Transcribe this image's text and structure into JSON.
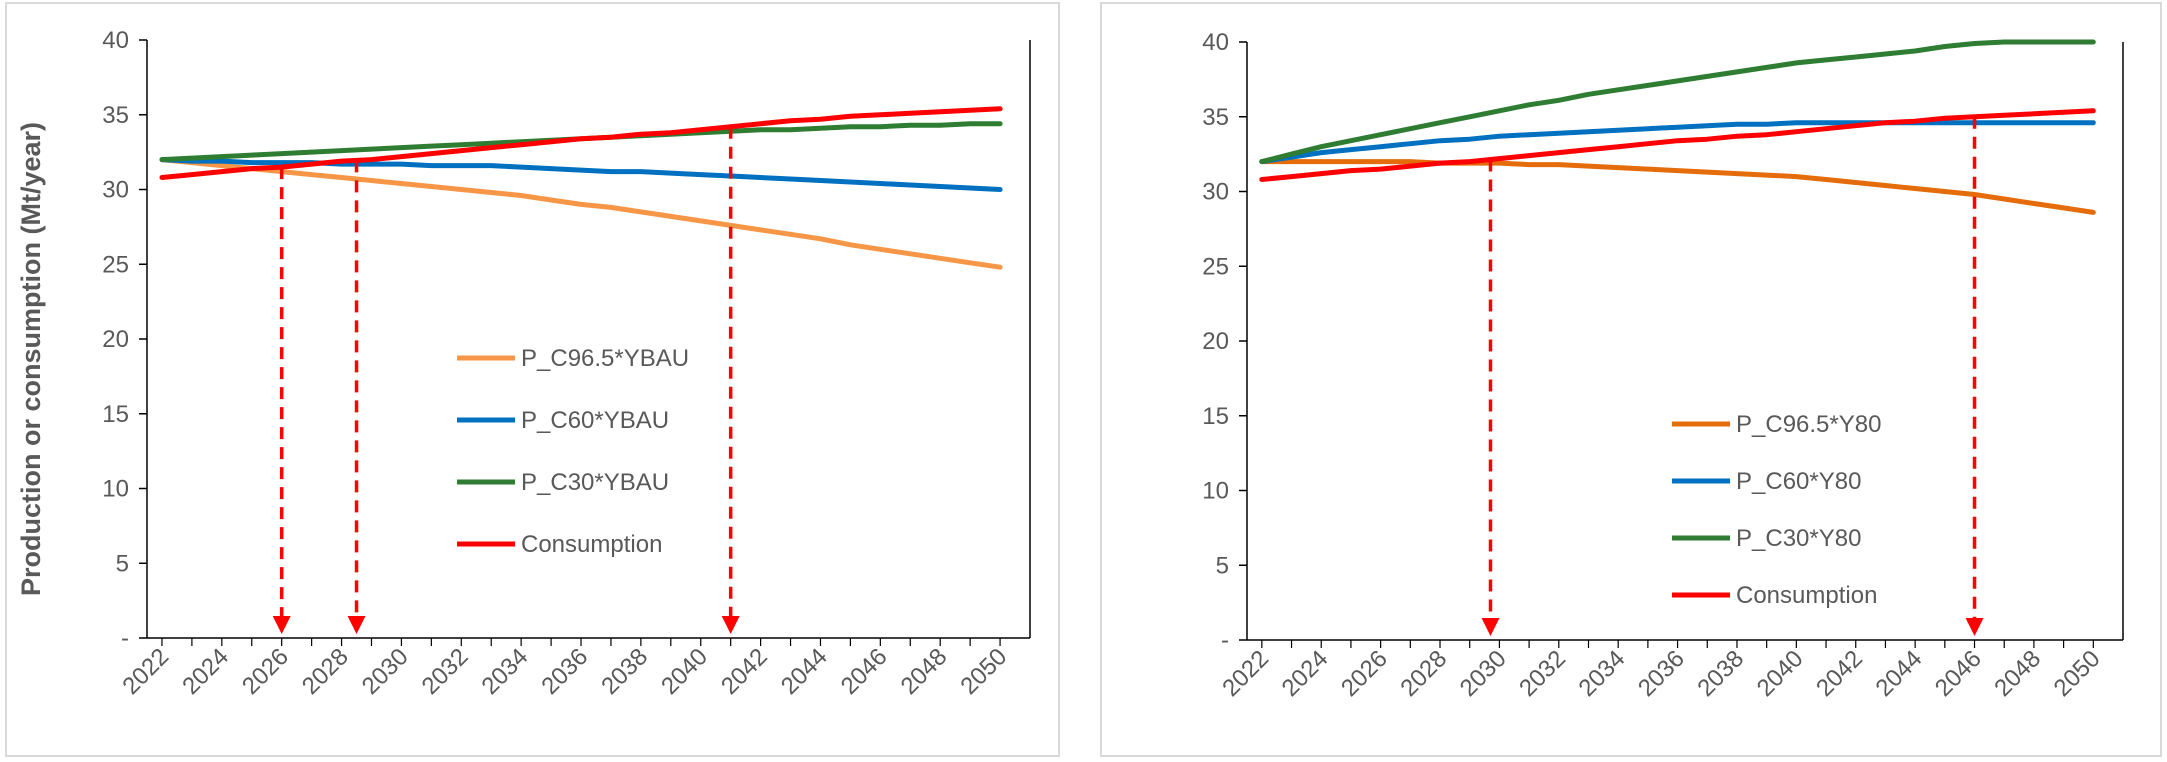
{
  "chart_data": [
    {
      "type": "line",
      "ylabel": "Production or consumption (Mt/year)",
      "xlabel": "",
      "xlim": [
        2021.5,
        2051
      ],
      "ylim": [
        0,
        40
      ],
      "x_ticks": [
        "2022",
        "2024",
        "2026",
        "2028",
        "2030",
        "2032",
        "2034",
        "2036",
        "2038",
        "2040",
        "2042",
        "2044",
        "2046",
        "2048",
        "2050"
      ],
      "y_ticks": [
        "-",
        "5",
        "10",
        "15",
        "20",
        "25",
        "30",
        "35",
        "40"
      ],
      "legend_position": "center",
      "x": [
        2022,
        2023,
        2024,
        2025,
        2026,
        2027,
        2028,
        2029,
        2030,
        2031,
        2032,
        2033,
        2034,
        2035,
        2036,
        2037,
        2038,
        2039,
        2040,
        2041,
        2042,
        2043,
        2044,
        2045,
        2046,
        2047,
        2048,
        2049,
        2050
      ],
      "series": [
        {
          "name": "P_C96.5*YBAU",
          "color": "#f79646",
          "values": [
            32.0,
            31.8,
            31.6,
            31.4,
            31.2,
            31.0,
            30.8,
            30.6,
            30.4,
            30.2,
            30.0,
            29.8,
            29.6,
            29.3,
            29.0,
            28.8,
            28.5,
            28.2,
            27.9,
            27.6,
            27.3,
            27.0,
            26.7,
            26.3,
            26.0,
            25.7,
            25.4,
            25.1,
            24.8
          ]
        },
        {
          "name": "P_C60*YBAU",
          "color": "#0070c0",
          "values": [
            32.0,
            31.9,
            31.9,
            31.8,
            31.8,
            31.8,
            31.7,
            31.7,
            31.7,
            31.6,
            31.6,
            31.6,
            31.5,
            31.4,
            31.3,
            31.2,
            31.2,
            31.1,
            31.0,
            30.9,
            30.8,
            30.7,
            30.6,
            30.5,
            30.4,
            30.3,
            30.2,
            30.1,
            30.0
          ]
        },
        {
          "name": "P_C30*YBAU",
          "color": "#2e7d32",
          "values": [
            32.0,
            32.1,
            32.2,
            32.3,
            32.4,
            32.5,
            32.6,
            32.7,
            32.8,
            32.9,
            33.0,
            33.1,
            33.2,
            33.3,
            33.4,
            33.5,
            33.6,
            33.7,
            33.8,
            33.9,
            34.0,
            34.0,
            34.1,
            34.2,
            34.2,
            34.3,
            34.3,
            34.4,
            34.4
          ]
        },
        {
          "name": "Consumption",
          "color": "#ff0000",
          "values": [
            30.8,
            31.0,
            31.2,
            31.4,
            31.5,
            31.7,
            31.9,
            32.0,
            32.2,
            32.4,
            32.6,
            32.8,
            33.0,
            33.2,
            33.4,
            33.5,
            33.7,
            33.8,
            34.0,
            34.2,
            34.4,
            34.6,
            34.7,
            34.9,
            35.0,
            35.1,
            35.2,
            35.3,
            35.4
          ]
        }
      ],
      "arrows_x": [
        2026,
        2028.5,
        2041
      ]
    },
    {
      "type": "line",
      "ylabel": "",
      "xlabel": "",
      "xlim": [
        2021.5,
        2051
      ],
      "ylim": [
        0,
        40
      ],
      "x_ticks": [
        "2022",
        "2024",
        "2026",
        "2028",
        "2030",
        "2032",
        "2034",
        "2036",
        "2038",
        "2040",
        "2042",
        "2044",
        "2046",
        "2048",
        "2050"
      ],
      "y_ticks": [
        "-",
        "5",
        "10",
        "15",
        "20",
        "25",
        "30",
        "35",
        "40"
      ],
      "legend_position": "lower-center",
      "x": [
        2022,
        2023,
        2024,
        2025,
        2026,
        2027,
        2028,
        2029,
        2030,
        2031,
        2032,
        2033,
        2034,
        2035,
        2036,
        2037,
        2038,
        2039,
        2040,
        2041,
        2042,
        2043,
        2044,
        2045,
        2046,
        2047,
        2048,
        2049,
        2050
      ],
      "series": [
        {
          "name": "P_C96.5*Y80",
          "color": "#e46c0a",
          "values": [
            32.0,
            32.0,
            32.0,
            32.0,
            32.0,
            32.0,
            31.9,
            31.9,
            31.9,
            31.8,
            31.8,
            31.7,
            31.6,
            31.5,
            31.4,
            31.3,
            31.2,
            31.1,
            31.0,
            30.8,
            30.6,
            30.4,
            30.2,
            30.0,
            29.8,
            29.5,
            29.2,
            28.9,
            28.6
          ]
        },
        {
          "name": "P_C60*Y80",
          "color": "#0070c0",
          "values": [
            32.0,
            32.3,
            32.6,
            32.8,
            33.0,
            33.2,
            33.4,
            33.5,
            33.7,
            33.8,
            33.9,
            34.0,
            34.1,
            34.2,
            34.3,
            34.4,
            34.5,
            34.5,
            34.6,
            34.6,
            34.6,
            34.6,
            34.6,
            34.6,
            34.6,
            34.6,
            34.6,
            34.6,
            34.6
          ]
        },
        {
          "name": "P_C30*Y80",
          "color": "#2e7d32",
          "values": [
            32.0,
            32.5,
            33.0,
            33.4,
            33.8,
            34.2,
            34.6,
            35.0,
            35.4,
            35.8,
            36.1,
            36.5,
            36.8,
            37.1,
            37.4,
            37.7,
            38.0,
            38.3,
            38.6,
            38.8,
            39.0,
            39.2,
            39.4,
            39.7,
            39.9,
            40.0,
            40.0,
            40.0,
            40.0
          ]
        },
        {
          "name": "Consumption",
          "color": "#ff0000",
          "values": [
            30.8,
            31.0,
            31.2,
            31.4,
            31.5,
            31.7,
            31.9,
            32.0,
            32.2,
            32.4,
            32.6,
            32.8,
            33.0,
            33.2,
            33.4,
            33.5,
            33.7,
            33.8,
            34.0,
            34.2,
            34.4,
            34.6,
            34.7,
            34.9,
            35.0,
            35.1,
            35.2,
            35.3,
            35.4
          ]
        }
      ],
      "arrows_x": [
        2029.7,
        2046
      ]
    }
  ]
}
